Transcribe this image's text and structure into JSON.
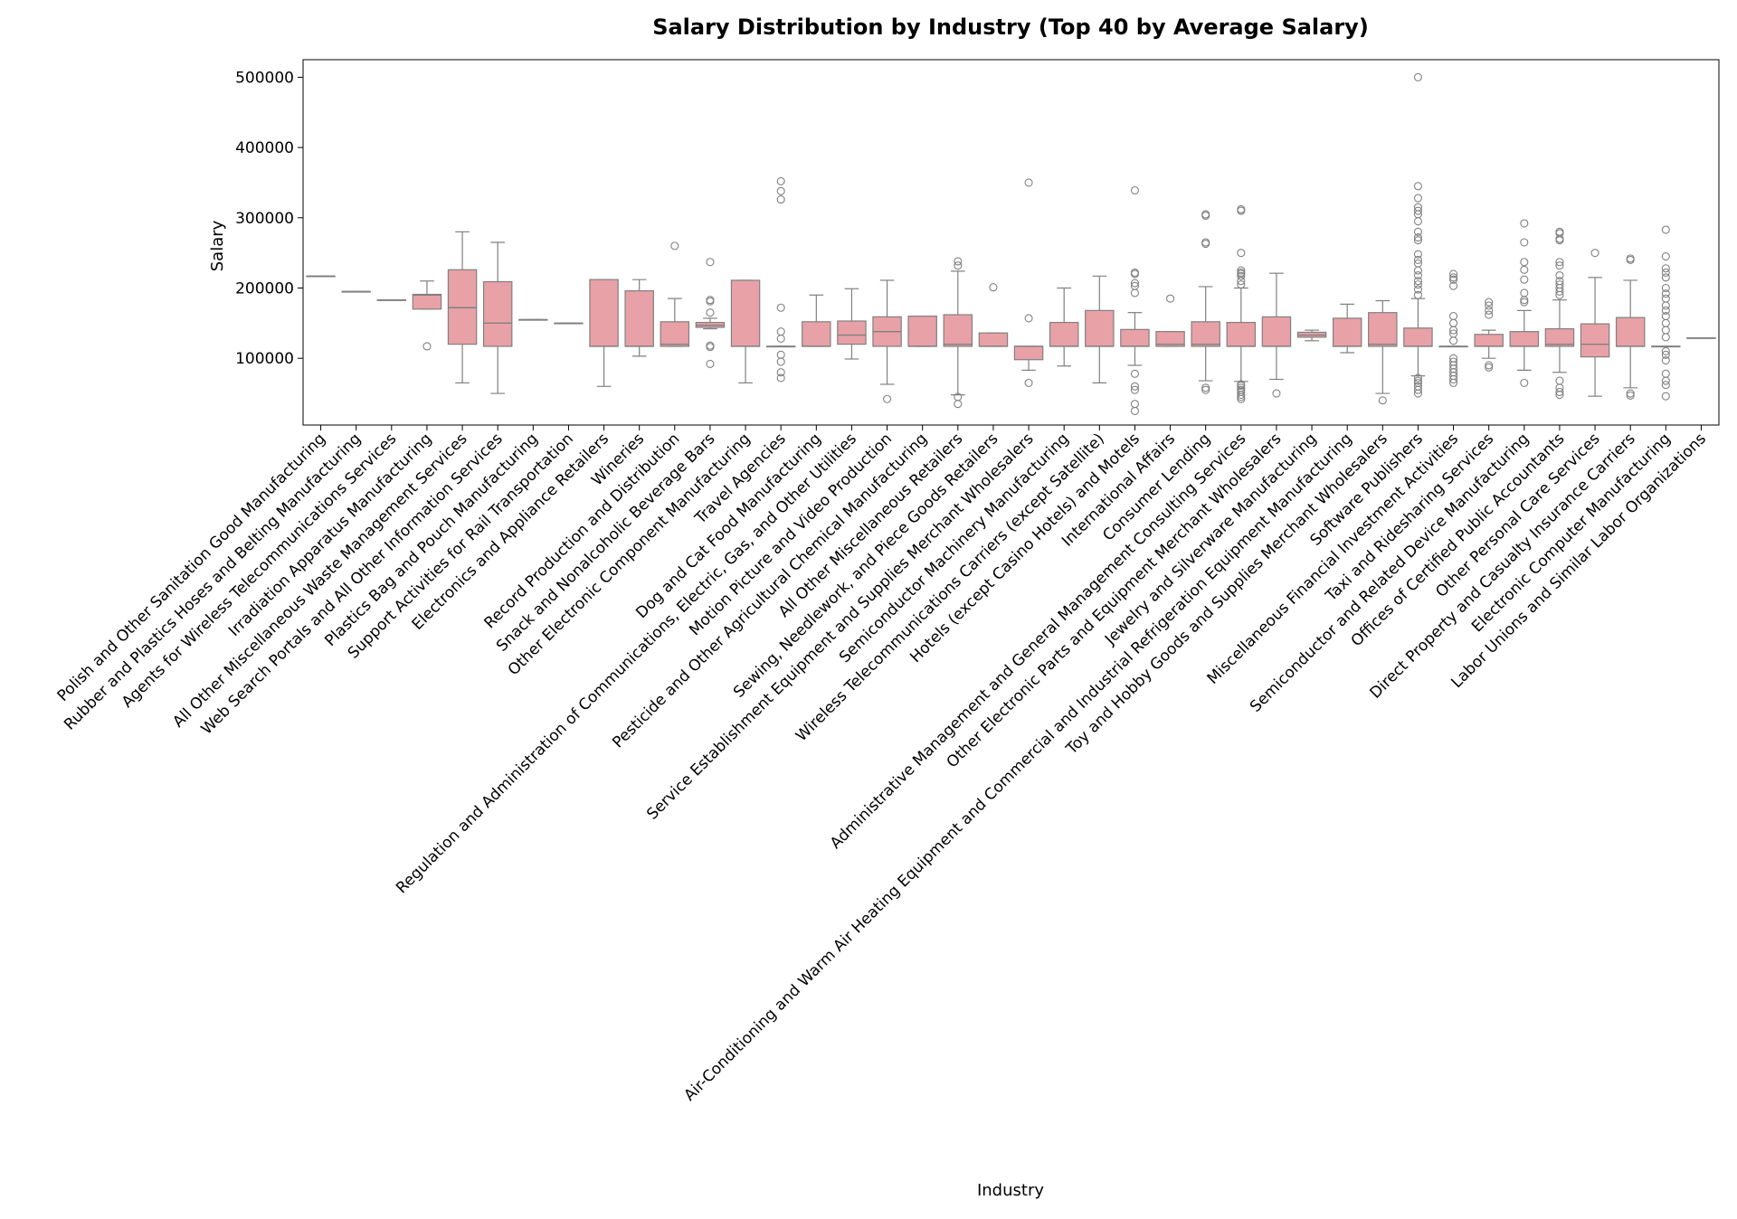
{
  "chart_data": {
    "type": "box",
    "title": "Salary Distribution by Industry (Top 40 by Average Salary)",
    "xlabel": "Industry",
    "ylabel": "Salary",
    "ylim": [
      5000,
      525000
    ],
    "yticks": [
      100000,
      200000,
      300000,
      400000,
      500000
    ],
    "grid": false,
    "box_color": "#e8a1a6",
    "edge_color": "#808080",
    "boxes": [
      {
        "category": "Polish and Other Sanitation Good Manufacturing",
        "q1": 217000,
        "median": 217000,
        "q3": 217000,
        "whisker_low": 217000,
        "whisker_high": 217000,
        "outliers": []
      },
      {
        "category": "Rubber and Plastics Hoses and Belting Manufacturing",
        "q1": 195000,
        "median": 195000,
        "q3": 195000,
        "whisker_low": 195000,
        "whisker_high": 195000,
        "outliers": []
      },
      {
        "category": "Agents for Wireless Telecommunications Services",
        "q1": 183000,
        "median": 183000,
        "q3": 183000,
        "whisker_low": 183000,
        "whisker_high": 183000,
        "outliers": []
      },
      {
        "category": "Irradiation Apparatus Manufacturing",
        "q1": 170000,
        "median": 190000,
        "q3": 191000,
        "whisker_low": 170000,
        "whisker_high": 210000,
        "outliers": [
          117000
        ]
      },
      {
        "category": "All Other Miscellaneous Waste Management Services",
        "q1": 120000,
        "median": 172000,
        "q3": 226000,
        "whisker_low": 65000,
        "whisker_high": 280000,
        "outliers": []
      },
      {
        "category": "Web Search Portals and All Other Information Services",
        "q1": 117000,
        "median": 150000,
        "q3": 209000,
        "whisker_low": 50000,
        "whisker_high": 265000,
        "outliers": []
      },
      {
        "category": "Plastics Bag and Pouch Manufacturing",
        "q1": 155000,
        "median": 155000,
        "q3": 155000,
        "whisker_low": 155000,
        "whisker_high": 155000,
        "outliers": []
      },
      {
        "category": "Support Activities for Rail Transportation",
        "q1": 150000,
        "median": 150000,
        "q3": 150000,
        "whisker_low": 150000,
        "whisker_high": 150000,
        "outliers": []
      },
      {
        "category": "Electronics and Appliance Retailers",
        "q1": 117000,
        "median": 117000,
        "q3": 212000,
        "whisker_low": 60000,
        "whisker_high": 212000,
        "outliers": []
      },
      {
        "category": "Wineries",
        "q1": 117000,
        "median": 117000,
        "q3": 196000,
        "whisker_low": 103000,
        "whisker_high": 212000,
        "outliers": []
      },
      {
        "category": "Record Production and Distribution",
        "q1": 117000,
        "median": 120000,
        "q3": 152000,
        "whisker_low": 117000,
        "whisker_high": 185000,
        "outliers": [
          260000
        ]
      },
      {
        "category": "Snack and Nonalcoholic Beverage Bars",
        "q1": 144000,
        "median": 147000,
        "q3": 151000,
        "whisker_low": 142000,
        "whisker_high": 157000,
        "outliers": [
          237000,
          183000,
          181000,
          165000,
          118000,
          116000,
          92000
        ]
      },
      {
        "category": "Other Electronic Component Manufacturing",
        "q1": 117000,
        "median": 117000,
        "q3": 211000,
        "whisker_low": 65000,
        "whisker_high": 211000,
        "outliers": []
      },
      {
        "category": "Travel Agencies",
        "q1": 117000,
        "median": 117000,
        "q3": 117000,
        "whisker_low": 117000,
        "whisker_high": 117000,
        "outliers": [
          352000,
          338000,
          326000,
          172000,
          138000,
          128000,
          105000,
          95000,
          80000,
          72000
        ]
      },
      {
        "category": "Dog and Cat Food Manufacturing",
        "q1": 117000,
        "median": 117000,
        "q3": 152000,
        "whisker_low": 117000,
        "whisker_high": 190000,
        "outliers": []
      },
      {
        "category": "Regulation and Administration of Communications, Electric, Gas, and Other Utilities",
        "q1": 120000,
        "median": 133000,
        "q3": 153000,
        "whisker_low": 99000,
        "whisker_high": 199000,
        "outliers": []
      },
      {
        "category": "Motion Picture and Video Production",
        "q1": 117000,
        "median": 138000,
        "q3": 159000,
        "whisker_low": 63000,
        "whisker_high": 211000,
        "outliers": [
          42000
        ]
      },
      {
        "category": "Pesticide and Other Agricultural Chemical Manufacturing",
        "q1": 117000,
        "median": 117000,
        "q3": 160000,
        "whisker_low": 117000,
        "whisker_high": 160000,
        "outliers": []
      },
      {
        "category": "All Other Miscellaneous Retailers",
        "q1": 117000,
        "median": 120000,
        "q3": 162000,
        "whisker_low": 48000,
        "whisker_high": 224000,
        "outliers": [
          238000,
          232000,
          45000,
          35000
        ]
      },
      {
        "category": "Sewing, Needlework, and Piece Goods Retailers",
        "q1": 117000,
        "median": 117000,
        "q3": 136000,
        "whisker_low": 117000,
        "whisker_high": 136000,
        "outliers": [
          201000
        ]
      },
      {
        "category": "Service Establishment Equipment and Supplies Merchant Wholesalers",
        "q1": 98000,
        "median": 117000,
        "q3": 117000,
        "whisker_low": 83000,
        "whisker_high": 117000,
        "outliers": [
          350000,
          157000,
          65000
        ]
      },
      {
        "category": "Semiconductor Machinery Manufacturing",
        "q1": 117000,
        "median": 117000,
        "q3": 151000,
        "whisker_low": 89000,
        "whisker_high": 200000,
        "outliers": []
      },
      {
        "category": "Wireless Telecommunications Carriers (except Satellite)",
        "q1": 117000,
        "median": 117000,
        "q3": 168000,
        "whisker_low": 65000,
        "whisker_high": 217000,
        "outliers": []
      },
      {
        "category": "Hotels (except Casino Hotels) and Motels",
        "q1": 117000,
        "median": 117000,
        "q3": 141000,
        "whisker_low": 90000,
        "whisker_high": 165000,
        "outliers": [
          339000,
          222000,
          220000,
          207000,
          203000,
          193000,
          78000,
          60000,
          55000,
          35000,
          25000
        ]
      },
      {
        "category": "International Affairs",
        "q1": 117000,
        "median": 120000,
        "q3": 138000,
        "whisker_low": 117000,
        "whisker_high": 138000,
        "outliers": [
          185000
        ]
      },
      {
        "category": "Consumer Lending",
        "q1": 117000,
        "median": 120000,
        "q3": 152000,
        "whisker_low": 68000,
        "whisker_high": 202000,
        "outliers": [
          305000,
          303000,
          265000,
          263000,
          58000,
          55000
        ]
      },
      {
        "category": "Administrative Management and General Management Consulting Services",
        "q1": 117000,
        "median": 117000,
        "q3": 151000,
        "whisker_low": 67000,
        "whisker_high": 200000,
        "outliers": [
          312000,
          310000,
          250000,
          225000,
          222000,
          220000,
          217000,
          210000,
          205000,
          63000,
          61000,
          58000,
          55000,
          52000,
          48000,
          45000,
          42000
        ]
      },
      {
        "category": "Other Electronic Parts and Equipment Merchant Wholesalers",
        "q1": 117000,
        "median": 117000,
        "q3": 159000,
        "whisker_low": 70000,
        "whisker_high": 221000,
        "outliers": [
          50000
        ]
      },
      {
        "category": "Jewelry and Silverware Manufacturing",
        "q1": 130000,
        "median": 133000,
        "q3": 137000,
        "whisker_low": 125000,
        "whisker_high": 140000,
        "outliers": []
      },
      {
        "category": "Air-Conditioning and Warm Air Heating Equipment and Commercial and Industrial Refrigeration Equipment Manufacturing",
        "q1": 117000,
        "median": 117000,
        "q3": 157000,
        "whisker_low": 108000,
        "whisker_high": 177000,
        "outliers": []
      },
      {
        "category": "Toy and Hobby Goods and Supplies Merchant Wholesalers",
        "q1": 117000,
        "median": 120000,
        "q3": 165000,
        "whisker_low": 50000,
        "whisker_high": 182000,
        "outliers": [
          40000
        ]
      },
      {
        "category": "Software Publishers",
        "q1": 117000,
        "median": 117000,
        "q3": 143000,
        "whisker_low": 75000,
        "whisker_high": 185000,
        "outliers": [
          500000,
          345000,
          328000,
          315000,
          310000,
          305000,
          295000,
          280000,
          272000,
          268000,
          248000,
          240000,
          235000,
          225000,
          218000,
          210000,
          205000,
          198000,
          190000,
          72000,
          68000,
          65000,
          60000,
          55000,
          50000
        ]
      },
      {
        "category": "Miscellaneous Financial Investment Activities",
        "q1": 117000,
        "median": 117000,
        "q3": 117000,
        "whisker_low": 117000,
        "whisker_high": 117000,
        "outliers": [
          220000,
          215000,
          212000,
          203000,
          160000,
          150000,
          140000,
          135000,
          125000,
          100000,
          95000,
          90000,
          85000,
          80000,
          75000,
          70000,
          65000
        ]
      },
      {
        "category": "Taxi and Ridesharing Services",
        "q1": 117000,
        "median": 117000,
        "q3": 134000,
        "whisker_low": 100000,
        "whisker_high": 140000,
        "outliers": [
          180000,
          175000,
          168000,
          162000,
          90000,
          87000
        ]
      },
      {
        "category": "Semiconductor and Related Device Manufacturing",
        "q1": 117000,
        "median": 117000,
        "q3": 138000,
        "whisker_low": 83000,
        "whisker_high": 168000,
        "outliers": [
          292000,
          265000,
          237000,
          226000,
          212000,
          193000,
          183000,
          180000,
          65000
        ]
      },
      {
        "category": "Offices of Certified Public Accountants",
        "q1": 117000,
        "median": 120000,
        "q3": 142000,
        "whisker_low": 80000,
        "whisker_high": 183000,
        "outliers": [
          280000,
          278000,
          270000,
          268000,
          237000,
          232000,
          218000,
          210000,
          205000,
          200000,
          195000,
          190000,
          68000,
          58000,
          52000,
          48000
        ]
      },
      {
        "category": "Other Personal Care Services",
        "q1": 102000,
        "median": 120000,
        "q3": 149000,
        "whisker_low": 46000,
        "whisker_high": 215000,
        "outliers": [
          250000
        ]
      },
      {
        "category": "Direct Property and Casualty Insurance Carriers",
        "q1": 117000,
        "median": 117000,
        "q3": 158000,
        "whisker_low": 58000,
        "whisker_high": 211000,
        "outliers": [
          242000,
          240000,
          50000,
          47000
        ]
      },
      {
        "category": "Electronic Computer Manufacturing",
        "q1": 117000,
        "median": 117000,
        "q3": 117000,
        "whisker_low": 117000,
        "whisker_high": 117000,
        "outliers": [
          283000,
          245000,
          228000,
          222000,
          215000,
          200000,
          192000,
          185000,
          175000,
          168000,
          160000,
          150000,
          140000,
          130000,
          110000,
          105000,
          97000,
          78000,
          68000,
          62000,
          46000
        ]
      },
      {
        "category": "Labor Unions and Similar Labor Organizations",
        "q1": 129000,
        "median": 129000,
        "q3": 129000,
        "whisker_low": 129000,
        "whisker_high": 129000,
        "outliers": []
      }
    ]
  }
}
